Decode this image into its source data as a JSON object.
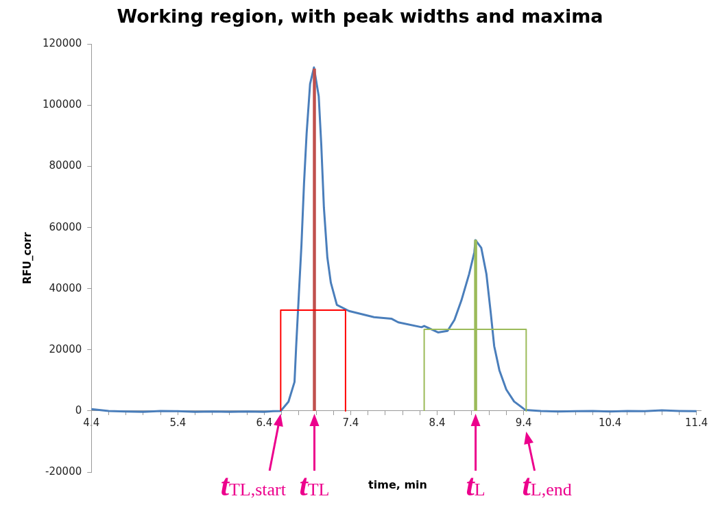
{
  "chart_data": {
    "type": "line",
    "title": "Working region, with peak widths and maxima",
    "xlabel": "time, min",
    "ylabel": "RFU_corr",
    "xlim": [
      4.4,
      11.45
    ],
    "ylim": [
      -20000,
      120000
    ],
    "xticks": [
      4.4,
      {
        "value": 4.6,
        "label": null
      },
      {
        "value": 4.8,
        "label": null
      },
      {
        "value": 5.0,
        "label": null
      },
      {
        "value": 5.2,
        "label": null
      },
      5.4,
      {
        "value": 5.6,
        "label": null
      },
      {
        "value": 5.8,
        "label": null
      },
      {
        "value": 6.0,
        "label": null
      },
      {
        "value": 6.2,
        "label": null
      },
      6.4,
      {
        "value": 6.6,
        "label": null
      },
      {
        "value": 6.8,
        "label": null
      },
      {
        "value": 7.0,
        "label": null
      },
      {
        "value": 7.2,
        "label": null
      },
      7.4,
      {
        "value": 7.6,
        "label": null
      },
      {
        "value": 7.8,
        "label": null
      },
      {
        "value": 8.0,
        "label": null
      },
      {
        "value": 8.2,
        "label": null
      },
      8.4,
      {
        "value": 8.6,
        "label": null
      },
      {
        "value": 8.8,
        "label": null
      },
      {
        "value": 9.0,
        "label": null
      },
      {
        "value": 9.2,
        "label": null
      },
      9.4,
      {
        "value": 9.6,
        "label": null
      },
      {
        "value": 9.8,
        "label": null
      },
      {
        "value": 10.0,
        "label": null
      },
      {
        "value": 10.2,
        "label": null
      },
      10.4,
      {
        "value": 10.6,
        "label": null
      },
      {
        "value": 10.8,
        "label": null
      },
      {
        "value": 11.0,
        "label": null
      },
      {
        "value": 11.2,
        "label": null
      },
      11.4
    ],
    "yticks": [
      -20000,
      0,
      20000,
      40000,
      60000,
      80000,
      100000,
      120000
    ],
    "grid": false,
    "legend": false,
    "marker": "none",
    "line_style": "solid",
    "series": [
      {
        "color": "#4a7ebb",
        "x": [
          4.4,
          4.6,
          4.8,
          5.0,
          5.2,
          5.4,
          5.6,
          5.8,
          6.0,
          6.2,
          6.4,
          6.5,
          6.59,
          6.68,
          6.75,
          6.77,
          6.8,
          6.83,
          6.86,
          6.89,
          6.93,
          6.975,
          7.03,
          7.06,
          7.09,
          7.13,
          7.17,
          7.24,
          7.38,
          7.67,
          7.87,
          7.95,
          8.22,
          8.25,
          8.41,
          8.52,
          8.6,
          8.68,
          8.77,
          8.83,
          8.843,
          8.91,
          8.97,
          9.02,
          9.06,
          9.12,
          9.2,
          9.29,
          9.42,
          9.6,
          9.8,
          10.0,
          10.2,
          10.4,
          10.6,
          10.8,
          11.0,
          11.2,
          11.4
        ],
        "values": [
          600,
          0,
          -200,
          -300,
          0,
          -100,
          -300,
          -200,
          -300,
          -200,
          -300,
          -100,
          0,
          3000,
          9500,
          21700,
          38000,
          54200,
          74500,
          90800,
          107000,
          112400,
          103000,
          86800,
          66500,
          50200,
          42000,
          34700,
          32700,
          30700,
          30200,
          29000,
          27400,
          27800,
          25700,
          26200,
          29800,
          36100,
          44800,
          51900,
          55900,
          53400,
          44800,
          32100,
          21200,
          13300,
          7000,
          3100,
          300,
          0,
          -200,
          -100,
          0,
          -200,
          0,
          -100,
          200,
          0,
          -100
        ]
      },
      {
        "color": "#ff0000",
        "x": [
          6.59,
          6.59,
          7.34,
          7.34
        ],
        "values": [
          0,
          33000,
          33000,
          0
        ]
      },
      {
        "color": "#c0504d",
        "x": [
          6.98,
          6.98
        ],
        "values": [
          0,
          112000
        ]
      },
      {
        "color": "#9bbb59",
        "x": [
          8.25,
          8.25,
          9.43,
          9.43
        ],
        "values": [
          0,
          26700,
          26700,
          0
        ]
      },
      {
        "color": "#9bbb59",
        "x": [
          8.845,
          8.845
        ],
        "values": [
          0,
          56000
        ]
      }
    ],
    "annotations": [
      {
        "text": "t$_{TL,start}$",
        "x": 6.59,
        "y": 0
      },
      {
        "text": "t$_{TL}$",
        "x": 6.98,
        "y": 0
      },
      {
        "text": "t$_{L}$",
        "x": 8.845,
        "y": 0
      },
      {
        "text": "t$_{L,end}$",
        "x": 9.43,
        "y": 0
      }
    ]
  }
}
